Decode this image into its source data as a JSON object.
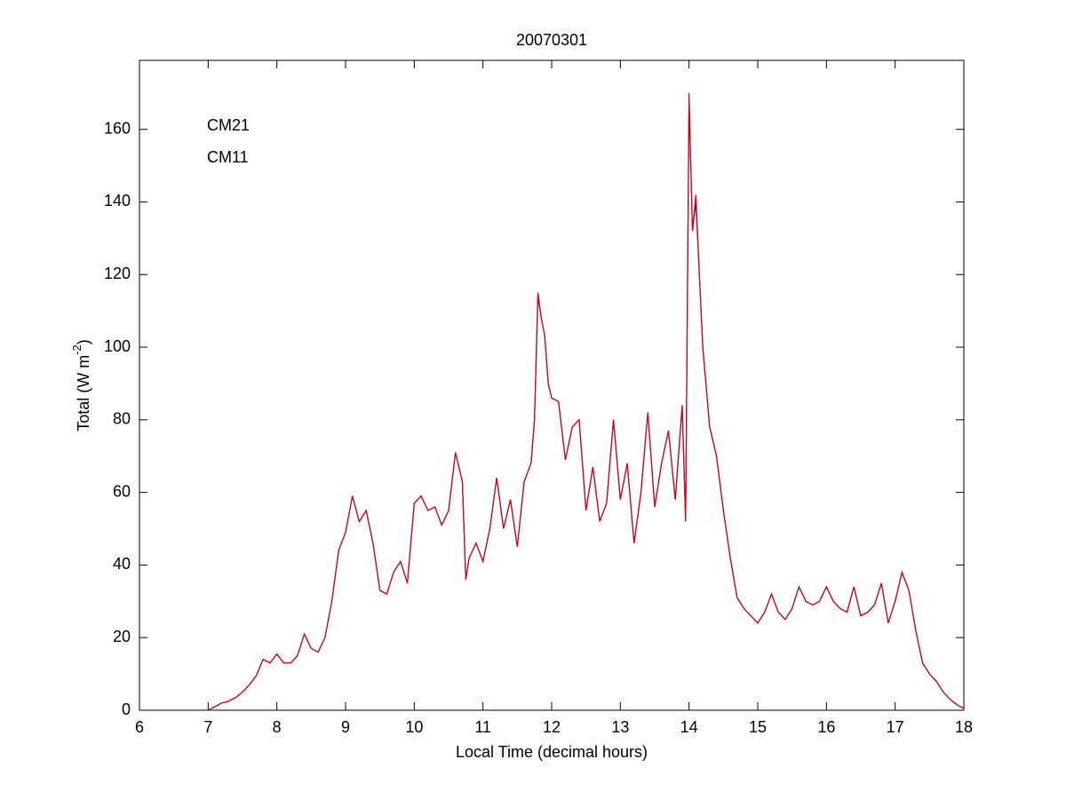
{
  "chart_data": {
    "type": "line",
    "title": "20070301",
    "xlabel": "Local Time (decimal hours)",
    "ylabel": [
      "Total (W m",
      "-2",
      ")"
    ],
    "x": [
      7.0,
      7.1,
      7.2,
      7.3,
      7.4,
      7.5,
      7.6,
      7.7,
      7.8,
      7.9,
      8.0,
      8.1,
      8.2,
      8.3,
      8.4,
      8.5,
      8.6,
      8.7,
      8.8,
      8.9,
      9.0,
      9.1,
      9.2,
      9.3,
      9.4,
      9.5,
      9.6,
      9.7,
      9.8,
      9.9,
      10.0,
      10.1,
      10.2,
      10.3,
      10.4,
      10.5,
      10.6,
      10.7,
      10.75,
      10.8,
      10.9,
      11.0,
      11.1,
      11.2,
      11.3,
      11.4,
      11.5,
      11.6,
      11.7,
      11.75,
      11.8,
      11.85,
      11.9,
      11.95,
      12.0,
      12.1,
      12.2,
      12.3,
      12.4,
      12.5,
      12.6,
      12.7,
      12.8,
      12.9,
      13.0,
      13.1,
      13.2,
      13.3,
      13.4,
      13.5,
      13.6,
      13.7,
      13.8,
      13.9,
      13.95,
      14.0,
      14.05,
      14.1,
      14.15,
      14.2,
      14.3,
      14.4,
      14.5,
      14.6,
      14.7,
      14.8,
      14.9,
      15.0,
      15.1,
      15.2,
      15.3,
      15.4,
      15.5,
      15.6,
      15.7,
      15.8,
      15.9,
      16.0,
      16.1,
      16.2,
      16.3,
      16.4,
      16.5,
      16.6,
      16.7,
      16.8,
      16.9,
      17.0,
      17.1,
      17.2,
      17.3,
      17.4,
      17.5,
      17.6,
      17.7,
      17.8,
      17.9,
      18.0
    ],
    "series": [
      {
        "name": "CM21",
        "color": "#0000c0",
        "values": [
          0,
          1,
          2,
          2.5,
          3.5,
          5,
          7,
          9.5,
          14,
          13,
          15.5,
          13,
          13,
          15,
          21,
          17,
          16,
          20,
          30,
          44,
          49,
          59,
          52,
          55,
          46,
          33,
          32,
          38,
          41,
          35,
          57,
          59,
          55,
          56,
          51,
          55,
          71,
          63,
          36,
          42,
          46,
          41,
          50,
          64,
          50,
          58,
          45,
          63,
          68,
          80,
          114,
          108,
          103,
          90,
          86,
          85,
          69,
          78,
          80,
          55,
          67,
          52,
          57,
          80,
          58,
          68,
          46,
          60,
          82,
          56,
          68,
          77,
          58,
          84,
          52,
          168,
          132,
          140,
          120,
          100,
          78,
          70,
          55,
          42,
          31,
          28,
          26,
          24,
          27,
          32,
          27,
          25,
          28,
          34,
          30,
          29,
          30,
          34,
          30,
          28,
          27,
          34,
          26,
          27,
          29,
          35,
          24,
          30,
          38,
          33,
          22,
          13,
          10,
          8,
          5,
          3,
          1.5,
          0.5
        ]
      },
      {
        "name": "CM11",
        "color": "#e00000",
        "values": [
          0,
          1,
          2,
          2.5,
          3.5,
          5,
          7,
          9.5,
          14,
          13,
          15.5,
          13,
          13,
          15,
          21,
          17,
          16,
          20,
          30,
          44,
          49,
          59,
          52,
          55,
          46,
          33,
          32,
          38,
          41,
          35,
          57,
          59,
          55,
          56,
          51,
          55,
          71,
          63,
          36,
          42,
          46,
          41,
          50,
          64,
          50,
          58,
          45,
          63,
          68,
          80,
          115,
          108,
          103,
          90,
          86,
          85,
          69,
          78,
          80,
          55,
          67,
          52,
          57,
          80,
          58,
          68,
          46,
          60,
          82,
          56,
          68,
          77,
          58,
          84,
          52,
          170,
          132,
          142,
          120,
          100,
          78,
          70,
          55,
          42,
          31,
          28,
          26,
          24,
          27,
          32,
          27,
          25,
          28,
          34,
          30,
          29,
          30,
          34,
          30,
          28,
          27,
          34,
          26,
          27,
          29,
          35,
          24,
          30,
          38,
          33,
          22,
          13,
          10,
          8,
          5,
          3,
          1.5,
          0.5
        ]
      }
    ],
    "xlim": [
      6,
      18
    ],
    "xticks": [
      6,
      7,
      8,
      9,
      10,
      11,
      12,
      13,
      14,
      15,
      16,
      17,
      18
    ],
    "ylim": [
      0,
      179
    ],
    "yticks": [
      0,
      20,
      40,
      60,
      80,
      100,
      120,
      140,
      160
    ],
    "grid": false,
    "legend": "upper left"
  }
}
